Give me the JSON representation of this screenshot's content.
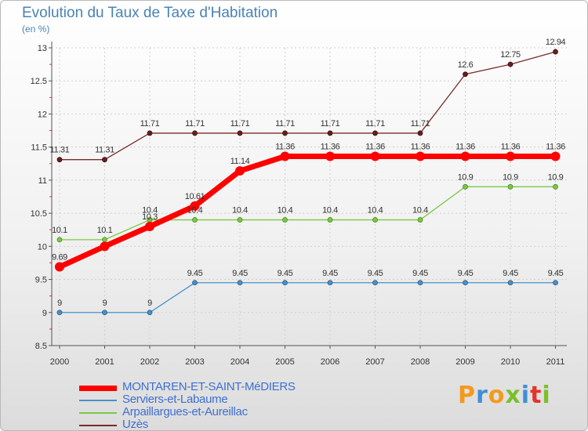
{
  "header": {
    "title": "Evolution du Taux de Taxe d'Habitation",
    "subtitle": "(en %)"
  },
  "logo": {
    "text": "Proxiti",
    "colors": [
      "#f39a1d",
      "#3f8fd6",
      "#f39a1d",
      "#7bbf2a",
      "#3f8fd6",
      "#e4342a",
      "#7bbf2a"
    ]
  },
  "chart_data": {
    "type": "line",
    "x": [
      "2000",
      "2001",
      "2002",
      "2003",
      "2004",
      "2005",
      "2006",
      "2007",
      "2008",
      "2009",
      "2010",
      "2011"
    ],
    "ylim": [
      8.5,
      13
    ],
    "yticks": [
      "8.5",
      "9",
      "9.5",
      "10",
      "10.5",
      "11",
      "11.5",
      "12",
      "12.5",
      "13"
    ],
    "grid": true,
    "legend_position": "bottom-left",
    "series": [
      {
        "name": "MONTAREN-ET-SAINT-MéDIERS",
        "color": "#ff0000",
        "values": [
          9.69,
          10,
          10.3,
          10.61,
          11.14,
          11.36,
          11.36,
          11.36,
          11.36,
          11.36,
          11.36,
          11.36
        ],
        "labels": [
          "9.69",
          "",
          "10.3",
          "10.61",
          "11.14",
          "11.36",
          "11.36",
          "11.36",
          "11.36",
          "11.36",
          "11.36",
          "11.36"
        ]
      },
      {
        "name": "Serviers-et-Labaume",
        "color": "#4a90c8",
        "values": [
          9,
          9,
          9,
          9.45,
          9.45,
          9.45,
          9.45,
          9.45,
          9.45,
          9.45,
          9.45,
          9.45
        ],
        "labels": [
          "9",
          "9",
          "9",
          "9.45",
          "9.45",
          "9.45",
          "9.45",
          "9.45",
          "9.45",
          "9.45",
          "9.45",
          "9.45"
        ]
      },
      {
        "name": "Arpaillargues-et-Aureillac",
        "color": "#7ac943",
        "values": [
          10.1,
          10.1,
          10.4,
          10.4,
          10.4,
          10.4,
          10.4,
          10.4,
          10.4,
          10.9,
          10.9,
          10.9
        ],
        "labels": [
          "10.1",
          "10.1",
          "10.4",
          "10.4",
          "10.4",
          "10.4",
          "10.4",
          "10.4",
          "10.4",
          "10.9",
          "10.9",
          "10.9"
        ]
      },
      {
        "name": "Uzès",
        "color": "#7a2b2b",
        "values": [
          11.31,
          11.31,
          11.71,
          11.71,
          11.71,
          11.71,
          11.71,
          11.71,
          11.71,
          12.6,
          12.75,
          12.94
        ],
        "labels": [
          "11.31",
          "11.31",
          "11.71",
          "11.71",
          "11.71",
          "11.71",
          "11.71",
          "11.71",
          "11.71",
          "12.6",
          "12.75",
          "12.94"
        ]
      }
    ]
  }
}
